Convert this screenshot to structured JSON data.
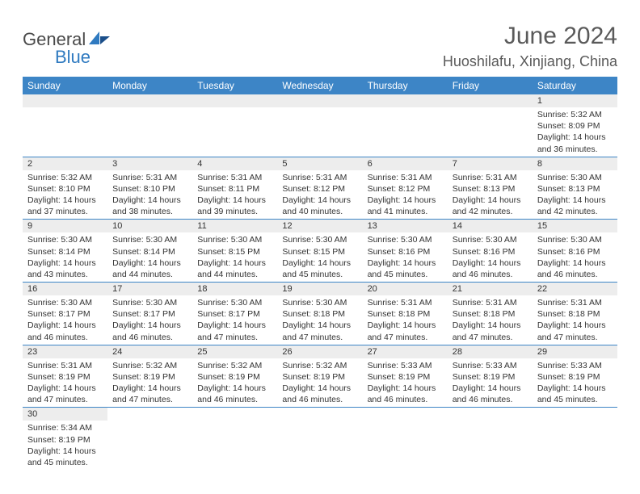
{
  "logo": {
    "text1": "General",
    "text2": "Blue"
  },
  "title": "June 2024",
  "location": "Huoshilafu, Xinjiang, China",
  "header_bg": "#3d85c6",
  "daynum_bg": "#ededed",
  "divider_color": "#3d85c6",
  "day_names": [
    "Sunday",
    "Monday",
    "Tuesday",
    "Wednesday",
    "Thursday",
    "Friday",
    "Saturday"
  ],
  "weeks": [
    [
      null,
      null,
      null,
      null,
      null,
      null,
      {
        "n": "1",
        "sr": "5:32 AM",
        "ss": "8:09 PM",
        "dl": "14 hours and 36 minutes."
      }
    ],
    [
      {
        "n": "2",
        "sr": "5:32 AM",
        "ss": "8:10 PM",
        "dl": "14 hours and 37 minutes."
      },
      {
        "n": "3",
        "sr": "5:31 AM",
        "ss": "8:10 PM",
        "dl": "14 hours and 38 minutes."
      },
      {
        "n": "4",
        "sr": "5:31 AM",
        "ss": "8:11 PM",
        "dl": "14 hours and 39 minutes."
      },
      {
        "n": "5",
        "sr": "5:31 AM",
        "ss": "8:12 PM",
        "dl": "14 hours and 40 minutes."
      },
      {
        "n": "6",
        "sr": "5:31 AM",
        "ss": "8:12 PM",
        "dl": "14 hours and 41 minutes."
      },
      {
        "n": "7",
        "sr": "5:31 AM",
        "ss": "8:13 PM",
        "dl": "14 hours and 42 minutes."
      },
      {
        "n": "8",
        "sr": "5:30 AM",
        "ss": "8:13 PM",
        "dl": "14 hours and 42 minutes."
      }
    ],
    [
      {
        "n": "9",
        "sr": "5:30 AM",
        "ss": "8:14 PM",
        "dl": "14 hours and 43 minutes."
      },
      {
        "n": "10",
        "sr": "5:30 AM",
        "ss": "8:14 PM",
        "dl": "14 hours and 44 minutes."
      },
      {
        "n": "11",
        "sr": "5:30 AM",
        "ss": "8:15 PM",
        "dl": "14 hours and 44 minutes."
      },
      {
        "n": "12",
        "sr": "5:30 AM",
        "ss": "8:15 PM",
        "dl": "14 hours and 45 minutes."
      },
      {
        "n": "13",
        "sr": "5:30 AM",
        "ss": "8:16 PM",
        "dl": "14 hours and 45 minutes."
      },
      {
        "n": "14",
        "sr": "5:30 AM",
        "ss": "8:16 PM",
        "dl": "14 hours and 46 minutes."
      },
      {
        "n": "15",
        "sr": "5:30 AM",
        "ss": "8:16 PM",
        "dl": "14 hours and 46 minutes."
      }
    ],
    [
      {
        "n": "16",
        "sr": "5:30 AM",
        "ss": "8:17 PM",
        "dl": "14 hours and 46 minutes."
      },
      {
        "n": "17",
        "sr": "5:30 AM",
        "ss": "8:17 PM",
        "dl": "14 hours and 46 minutes."
      },
      {
        "n": "18",
        "sr": "5:30 AM",
        "ss": "8:17 PM",
        "dl": "14 hours and 47 minutes."
      },
      {
        "n": "19",
        "sr": "5:30 AM",
        "ss": "8:18 PM",
        "dl": "14 hours and 47 minutes."
      },
      {
        "n": "20",
        "sr": "5:31 AM",
        "ss": "8:18 PM",
        "dl": "14 hours and 47 minutes."
      },
      {
        "n": "21",
        "sr": "5:31 AM",
        "ss": "8:18 PM",
        "dl": "14 hours and 47 minutes."
      },
      {
        "n": "22",
        "sr": "5:31 AM",
        "ss": "8:18 PM",
        "dl": "14 hours and 47 minutes."
      }
    ],
    [
      {
        "n": "23",
        "sr": "5:31 AM",
        "ss": "8:19 PM",
        "dl": "14 hours and 47 minutes."
      },
      {
        "n": "24",
        "sr": "5:32 AM",
        "ss": "8:19 PM",
        "dl": "14 hours and 47 minutes."
      },
      {
        "n": "25",
        "sr": "5:32 AM",
        "ss": "8:19 PM",
        "dl": "14 hours and 46 minutes."
      },
      {
        "n": "26",
        "sr": "5:32 AM",
        "ss": "8:19 PM",
        "dl": "14 hours and 46 minutes."
      },
      {
        "n": "27",
        "sr": "5:33 AM",
        "ss": "8:19 PM",
        "dl": "14 hours and 46 minutes."
      },
      {
        "n": "28",
        "sr": "5:33 AM",
        "ss": "8:19 PM",
        "dl": "14 hours and 46 minutes."
      },
      {
        "n": "29",
        "sr": "5:33 AM",
        "ss": "8:19 PM",
        "dl": "14 hours and 45 minutes."
      }
    ],
    [
      {
        "n": "30",
        "sr": "5:34 AM",
        "ss": "8:19 PM",
        "dl": "14 hours and 45 minutes."
      },
      null,
      null,
      null,
      null,
      null,
      null
    ]
  ],
  "labels": {
    "sunrise": "Sunrise:",
    "sunset": "Sunset:",
    "daylight": "Daylight:"
  }
}
